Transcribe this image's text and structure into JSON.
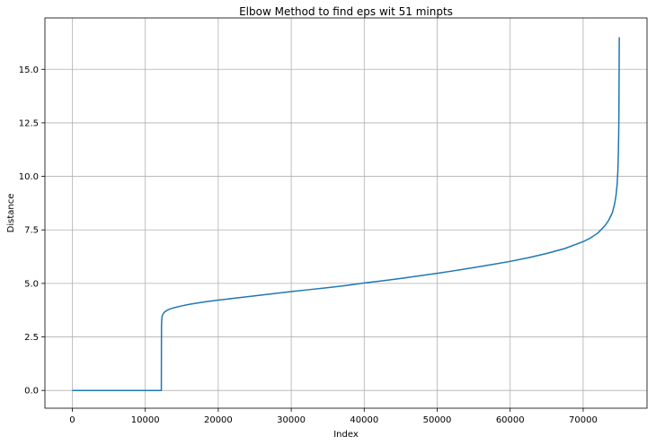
{
  "chart_data": {
    "type": "line",
    "title": "Elbow Method to find eps wit 51 minpts",
    "xlabel": "Index",
    "ylabel": "Distance",
    "xlim": [
      -3750,
      78750
    ],
    "ylim": [
      -0.83,
      17.4
    ],
    "xticks": [
      0,
      10000,
      20000,
      30000,
      40000,
      50000,
      60000,
      70000
    ],
    "xtick_labels": [
      "0",
      "10000",
      "20000",
      "30000",
      "40000",
      "50000",
      "60000",
      "70000"
    ],
    "yticks": [
      0.0,
      2.5,
      5.0,
      7.5,
      10.0,
      12.5,
      15.0
    ],
    "ytick_labels": [
      "0.0",
      "2.5",
      "5.0",
      "7.5",
      "10.0",
      "12.5",
      "15.0"
    ],
    "grid": true,
    "line_color": "#1f77b4",
    "series": [
      {
        "x": [
          0,
          12200,
          12220,
          12250,
          12300,
          12400,
          12600,
          13000,
          13500,
          14000,
          15000,
          16000,
          18000,
          20000,
          22500,
          25000,
          27500,
          30000,
          32500,
          35000,
          37500,
          40000,
          42500,
          45000,
          47500,
          50000,
          52500,
          55000,
          57500,
          60000,
          62500,
          65000,
          67500,
          70000,
          71000,
          72000,
          73000,
          73500,
          74000,
          74300,
          74500,
          74650,
          74750,
          74820,
          74870,
          74900,
          74920,
          74950
        ],
        "y": [
          0.0,
          0.0,
          3.0,
          3.3,
          3.45,
          3.55,
          3.65,
          3.75,
          3.82,
          3.87,
          3.95,
          4.02,
          4.13,
          4.22,
          4.32,
          4.42,
          4.52,
          4.62,
          4.71,
          4.8,
          4.9,
          5.02,
          5.12,
          5.23,
          5.35,
          5.47,
          5.6,
          5.74,
          5.88,
          6.03,
          6.2,
          6.4,
          6.63,
          6.95,
          7.12,
          7.35,
          7.7,
          7.95,
          8.3,
          8.7,
          9.1,
          9.6,
          10.2,
          11.0,
          12.0,
          13.0,
          14.5,
          16.5
        ]
      }
    ]
  }
}
